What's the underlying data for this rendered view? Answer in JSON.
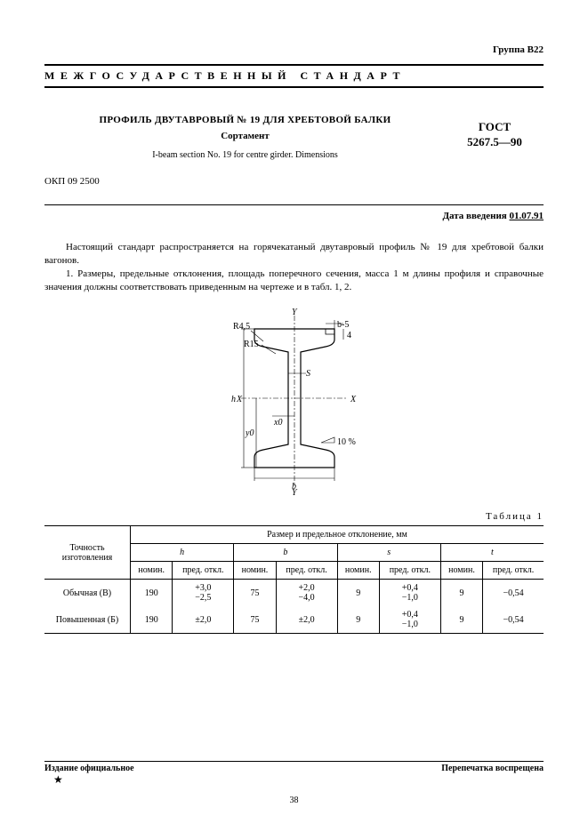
{
  "group_label": "Группа В22",
  "banner": "МЕЖГОСУДАРСТВЕННЫЙ СТАНДАРТ",
  "head": {
    "title_main": "ПРОФИЛЬ ДВУТАВРОВЫЙ № 19 ДЛЯ ХРЕБТОВОЙ БАЛКИ",
    "title_sub": "Сортамент",
    "title_en": "I-beam section No. 19 for centre girder. Dimensions",
    "std_word": "ГОСТ",
    "std_num": "5267.5—90",
    "okp": "ОКП 09 2500",
    "intro_date_label": "Дата введения ",
    "intro_date_value": "01.07.91"
  },
  "body": {
    "p1": "Настоящий стандарт распространяется на горячекатаный двутавровый профиль № 19 для хребтовой балки вагонов.",
    "p2": "1. Размеры, предельные отклонения, площадь поперечного сечения, масса 1 м длины профиля и справочные значения должны соответствовать приведенным на чертеже и в табл. 1, 2."
  },
  "diagram": {
    "labels": {
      "R45": "R4,5",
      "R15": "R15",
      "b5": "b-5",
      "four": "4",
      "S": "S",
      "h": "h",
      "X": "X",
      "x0": "x0",
      "y0": "y0",
      "b": "b",
      "Y": "Y",
      "slope": "10 %"
    }
  },
  "table1": {
    "caption": "Таблица 1",
    "header_top": "Размер и предельное отклонение, мм",
    "header_left": "Точность изготовления",
    "cols": [
      "h",
      "b",
      "s",
      "t"
    ],
    "sub_nom": "номин.",
    "sub_dev": "пред. откл.",
    "rows": [
      {
        "label": "Обычная (В)",
        "h_nom": "190",
        "h_dev": "+3,0\n−2,5",
        "b_nom": "75",
        "b_dev": "+2,0\n−4,0",
        "s_nom": "9",
        "s_dev": "+0,4\n−1,0",
        "t_nom": "9",
        "t_dev": "−0,54"
      },
      {
        "label": "Повышенная (Б)",
        "h_nom": "190",
        "h_dev": "±2,0",
        "b_nom": "75",
        "b_dev": "±2,0",
        "s_nom": "9",
        "s_dev": "+0,4\n−1,0",
        "t_nom": "9",
        "t_dev": "−0,54"
      }
    ]
  },
  "footer": {
    "left": "Издание официальное",
    "right": "Перепечатка воспрещена",
    "star": "★",
    "page": "38"
  }
}
